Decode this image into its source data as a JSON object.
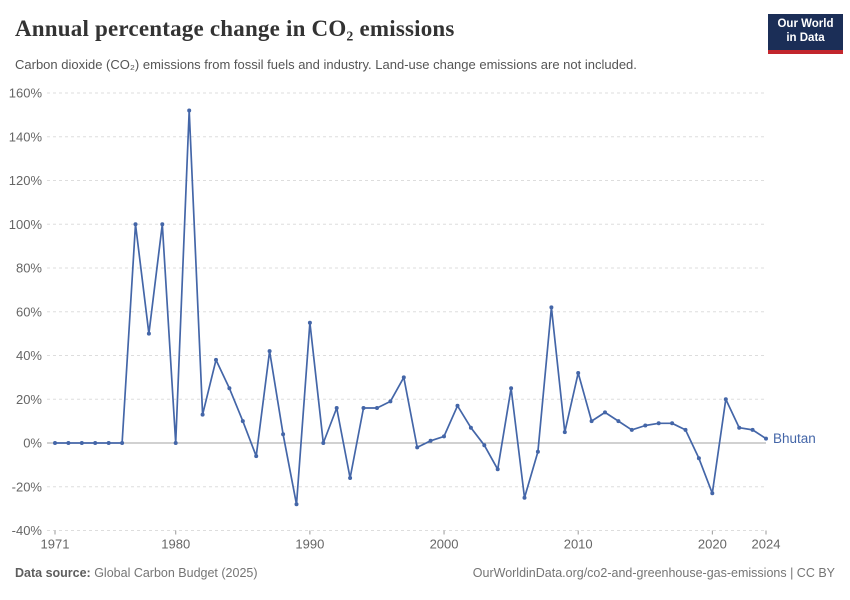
{
  "header": {
    "title": "Annual percentage change in CO₂ emissions",
    "subtitle": "Carbon dioxide (CO₂) emissions from fossil fuels and industry. Land-use change emissions are not included."
  },
  "logo": {
    "line1": "Our World",
    "line2": "in Data"
  },
  "footer": {
    "source_label": "Data source:",
    "source_value": " Global Carbon Budget (2025)",
    "link_text": "OurWorldinData.org/co2-and-greenhouse-gas-emissions | CC BY"
  },
  "colors": {
    "line": "#4466a8",
    "logo_bg": "#1b2e57",
    "logo_stripe": "#c2262d",
    "grid": "#dddddd",
    "zero_line": "#a3a3a3",
    "axis_text": "#666666",
    "tick": "#999999"
  },
  "chart_data": {
    "type": "line",
    "series": [
      {
        "name": "Bhutan",
        "years": [
          1971,
          1972,
          1973,
          1974,
          1975,
          1976,
          1977,
          1978,
          1979,
          1980,
          1981,
          1982,
          1983,
          1984,
          1985,
          1986,
          1987,
          1988,
          1989,
          1990,
          1991,
          1992,
          1993,
          1994,
          1995,
          1996,
          1997,
          1998,
          1999,
          2000,
          2001,
          2002,
          2003,
          2004,
          2005,
          2006,
          2007,
          2008,
          2009,
          2010,
          2011,
          2012,
          2013,
          2014,
          2015,
          2016,
          2017,
          2018,
          2019,
          2020,
          2021,
          2022,
          2023,
          2024
        ],
        "values": [
          0,
          0,
          0,
          0,
          0,
          0,
          100,
          50,
          100,
          0,
          152,
          13,
          38,
          25,
          10,
          -6,
          42,
          4,
          -28,
          55,
          0,
          16,
          -16,
          16,
          16,
          19,
          30,
          -2,
          1,
          3,
          17,
          7,
          -1,
          -12,
          25,
          -25,
          -4,
          62,
          5,
          32,
          10,
          14,
          10,
          6,
          8,
          9,
          9,
          6,
          -7,
          -23,
          20,
          7,
          6,
          2
        ]
      }
    ],
    "ylabel": "",
    "xlabel": "",
    "ylim": [
      -40,
      160
    ],
    "ytick_step": 20,
    "ytick_suffix": "%",
    "yticks": [
      -40,
      -20,
      0,
      20,
      40,
      60,
      80,
      100,
      120,
      140,
      160
    ],
    "xticks": [
      1971,
      1980,
      1990,
      2000,
      2010,
      2020,
      2024
    ],
    "grid": "dashed-horizontal",
    "zero_line": true,
    "end_label": "Bhutan"
  }
}
